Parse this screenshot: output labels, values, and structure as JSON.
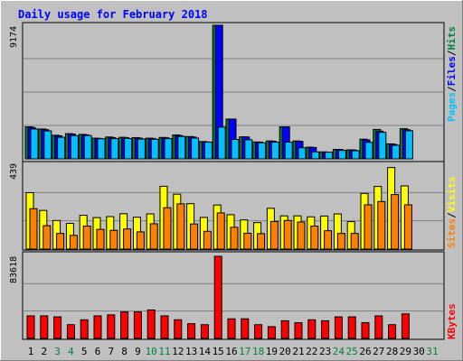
{
  "chart_data": [
    {
      "type": "bar",
      "panel": "hits-files-pages",
      "title": "Daily usage for February 2018",
      "ymax_label": "9174",
      "ymax": 9174,
      "legend": [
        {
          "label": "Pages",
          "color": "#00C0FF"
        },
        {
          "label": "Files",
          "color": "#0000FF"
        },
        {
          "label": "Hits",
          "color": "#008040"
        }
      ],
      "separator_color": "#000000",
      "categories": [
        "1",
        "2",
        "3",
        "4",
        "5",
        "6",
        "7",
        "8",
        "9",
        "10",
        "11",
        "12",
        "13",
        "14",
        "15",
        "16",
        "17",
        "18",
        "19",
        "20",
        "21",
        "22",
        "23",
        "24",
        "25",
        "26",
        "27",
        "28",
        "29",
        "30",
        "31"
      ],
      "series": [
        {
          "name": "Hits",
          "values": [
            2200,
            2050,
            1620,
            1730,
            1680,
            1420,
            1500,
            1480,
            1460,
            1420,
            1470,
            1640,
            1530,
            1190,
            9174,
            2730,
            1510,
            1160,
            1230,
            2200,
            1230,
            800,
            480,
            650,
            620,
            1350,
            2020,
            1030,
            2070,
            0,
            0
          ]
        },
        {
          "name": "Files",
          "values": [
            2150,
            2000,
            1580,
            1700,
            1650,
            1400,
            1460,
            1450,
            1420,
            1400,
            1440,
            1600,
            1500,
            1160,
            9174,
            2730,
            1500,
            1150,
            1210,
            2200,
            1200,
            780,
            460,
            640,
            610,
            1300,
            1900,
            1000,
            2000,
            0,
            0
          ]
        },
        {
          "name": "Pages",
          "values": [
            2050,
            1920,
            1480,
            1590,
            1600,
            1380,
            1390,
            1400,
            1360,
            1340,
            1390,
            1540,
            1430,
            1150,
            2180,
            1330,
            1310,
            1100,
            1150,
            1150,
            760,
            480,
            460,
            580,
            560,
            1130,
            1820,
            930,
            1930,
            0,
            0
          ]
        }
      ]
    },
    {
      "type": "bar",
      "panel": "sites-visits",
      "ymax_label": "439",
      "ymax": 439,
      "legend": [
        {
          "label": "Sites",
          "color": "#FF8000"
        },
        {
          "label": "Visits",
          "color": "#FFFF00"
        }
      ],
      "separator_color": "#000000",
      "series": [
        {
          "name": "Visits",
          "values": [
            292,
            200,
            148,
            133,
            175,
            163,
            168,
            183,
            165,
            182,
            325,
            284,
            235,
            164,
            228,
            178,
            151,
            137,
            211,
            172,
            172,
            167,
            171,
            182,
            142,
            288,
            324,
            422,
            327,
            0,
            0
          ]
        },
        {
          "name": "Sites",
          "values": [
            209,
            121,
            81,
            71,
            119,
            102,
            97,
            104,
            89,
            131,
            214,
            234,
            130,
            92,
            187,
            113,
            82,
            80,
            143,
            148,
            140,
            119,
            95,
            81,
            81,
            229,
            246,
            282,
            229,
            0,
            0
          ]
        }
      ]
    },
    {
      "type": "bar",
      "panel": "kbytes",
      "ymax_label": "83618",
      "ymax": 83618,
      "legend": [
        {
          "label": "KBytes",
          "color": "#FF0000"
        }
      ],
      "series": [
        {
          "name": "KBytes",
          "values": [
            23000,
            23000,
            22000,
            14000,
            19000,
            23000,
            24000,
            27000,
            27000,
            29000,
            23000,
            19000,
            15000,
            14000,
            83618,
            20000,
            20000,
            14000,
            12000,
            18000,
            16000,
            19000,
            18000,
            22000,
            22000,
            16000,
            23000,
            14000,
            25000,
            0,
            0
          ]
        }
      ]
    }
  ],
  "colors": {
    "background": "#C0C0C0",
    "day_label_weekday": "#000000",
    "day_label_weekend": "#008040"
  },
  "weekend_days": [
    "3",
    "4",
    "10",
    "11",
    "17",
    "18",
    "24",
    "25",
    "31"
  ]
}
